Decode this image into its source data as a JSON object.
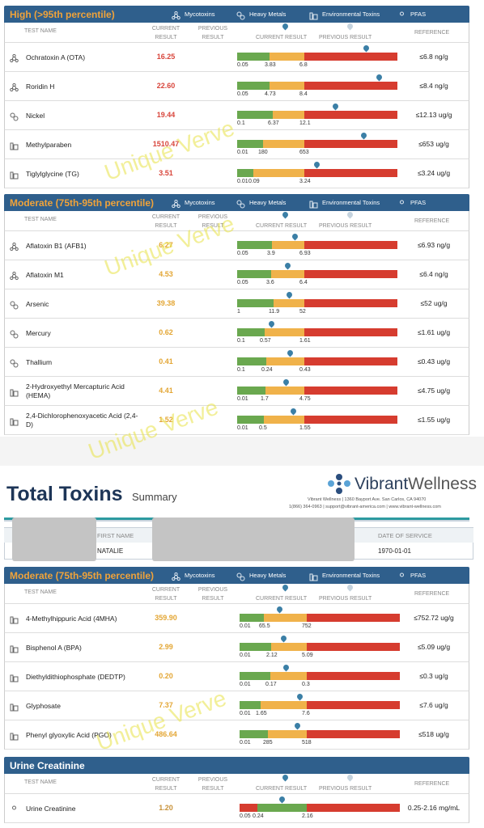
{
  "watermark": "Unique Verve",
  "legend": [
    "Mycotoxins",
    "Heavy Metals",
    "Environmental Toxins",
    "PFAS"
  ],
  "columns": {
    "test_name": "TEST NAME",
    "current_result": "CURRENT RESULT",
    "previous_result": "PREVIOUS RESULT",
    "current_marker": "CURRENT RESULT",
    "previous_marker": "PREVIOUS RESULT",
    "reference": "REFERENCE"
  },
  "report": {
    "title": "Total Toxins",
    "subtitle": "Summary",
    "brand_main": "Vibrant",
    "brand_sub": "Wellness",
    "address": "Vibrant Wellness | 1360 Bayport Ave. San Carlos, CA 94070",
    "contact": "1(866) 364-0963 | support@vibrant-america.com | www.vibrant-wellness.com"
  },
  "patient": {
    "first_name_label": "FIRST NAME",
    "first_name": "NATALIE",
    "date_label": "DATE OF SERVICE",
    "date": "1970-01-01"
  },
  "sections": [
    {
      "title": "High (>95th percentile)",
      "title_color": "#f0a33a",
      "result_color": "#d8453b",
      "legend": true,
      "rows": [
        {
          "name": "Ochratoxin A (OTA)",
          "result": "16.25",
          "ticks": [
            "0.05",
            "3.83",
            "6.8"
          ],
          "reference": "≤6.8 ng/g"
        },
        {
          "name": "Roridin H",
          "result": "22.60",
          "ticks": [
            "0.05",
            "4.73",
            "8.4"
          ],
          "reference": "≤8.4 ng/g"
        },
        {
          "name": "Nickel",
          "result": "19.44",
          "ticks": [
            "0.1",
            "6.37",
            "12.1"
          ],
          "reference": "≤12.13 ug/g"
        },
        {
          "name": "Methylparaben",
          "result": "1510.47",
          "ticks": [
            "0.01",
            "180",
            "653"
          ],
          "reference": "≤653 ug/g"
        },
        {
          "name": "Tiglylglycine (TG)",
          "result": "3.51",
          "ticks": [
            "0.01",
            "0.09",
            "3.24"
          ],
          "reference": "≤3.24 ug/g"
        }
      ]
    },
    {
      "title": "Moderate (75th-95th percentile)",
      "title_color": "#f0a33a",
      "result_color": "#e3a634",
      "legend": true,
      "rows": [
        {
          "name": "Aflatoxin B1 (AFB1)",
          "result": "6.27",
          "ticks": [
            "0.05",
            "3.9",
            "6.93"
          ],
          "reference": "≤6.93 ng/g"
        },
        {
          "name": "Aflatoxin M1",
          "result": "4.53",
          "ticks": [
            "0.05",
            "3.6",
            "6.4"
          ],
          "reference": "≤6.4 ng/g"
        },
        {
          "name": "Arsenic",
          "result": "39.38",
          "ticks": [
            "1",
            "11.9",
            "52"
          ],
          "reference": "≤52 ug/g"
        },
        {
          "name": "Mercury",
          "result": "0.62",
          "ticks": [
            "0.1",
            "0.57",
            "1.61"
          ],
          "reference": "≤1.61 ug/g"
        },
        {
          "name": "Thallium",
          "result": "0.41",
          "ticks": [
            "0.1",
            "0.24",
            "0.43"
          ],
          "reference": "≤0.43 ug/g"
        },
        {
          "name": "2-Hydroxyethyl Mercapturic Acid (HEMA)",
          "result": "4.41",
          "ticks": [
            "0.01",
            "1.7",
            "4.75"
          ],
          "reference": "≤4.75 ug/g"
        },
        {
          "name": "2,4-Dichlorophenoxyacetic Acid (2,4-D)",
          "result": "1.52",
          "ticks": [
            "0.01",
            "0.5",
            "1.55"
          ],
          "reference": "≤1.55 ug/g"
        }
      ]
    },
    {
      "title": "Moderate (75th-95th percentile)",
      "title_color": "#f0a33a",
      "result_color": "#e3a634",
      "legend": true,
      "rows": [
        {
          "name": "4-Methylhippuric Acid (4MHA)",
          "result": "359.90",
          "ticks": [
            "0.01",
            "65.5",
            "752"
          ],
          "reference": "≤752.72 ug/g"
        },
        {
          "name": "Bisphenol A (BPA)",
          "result": "2.99",
          "ticks": [
            "0.01",
            "2.12",
            "5.09"
          ],
          "reference": "≤5.09 ug/g"
        },
        {
          "name": "Diethyldithiophosphate (DEDTP)",
          "result": "0.20",
          "ticks": [
            "0.01",
            "0.17",
            "0.3"
          ],
          "reference": "≤0.3 ug/g"
        },
        {
          "name": "Glyphosate",
          "result": "7.37",
          "ticks": [
            "0.01",
            "1.65",
            "7.6"
          ],
          "reference": "≤7.6 ug/g"
        },
        {
          "name": "Phenyl glyoxylic Acid (PGO)",
          "result": "486.64",
          "ticks": [
            "0.01",
            "285",
            "518"
          ],
          "reference": "≤518 ug/g"
        }
      ]
    },
    {
      "title": "Urine Creatinine",
      "title_color": "#ffffff",
      "result_color": "#c8923a",
      "legend": false,
      "rows": [
        {
          "name": "Urine Creatinine",
          "result": "1.20",
          "ticks": [
            "0.05",
            "0.24",
            "2.16"
          ],
          "reference": "0.25-2.16 mg/mL"
        }
      ]
    }
  ]
}
